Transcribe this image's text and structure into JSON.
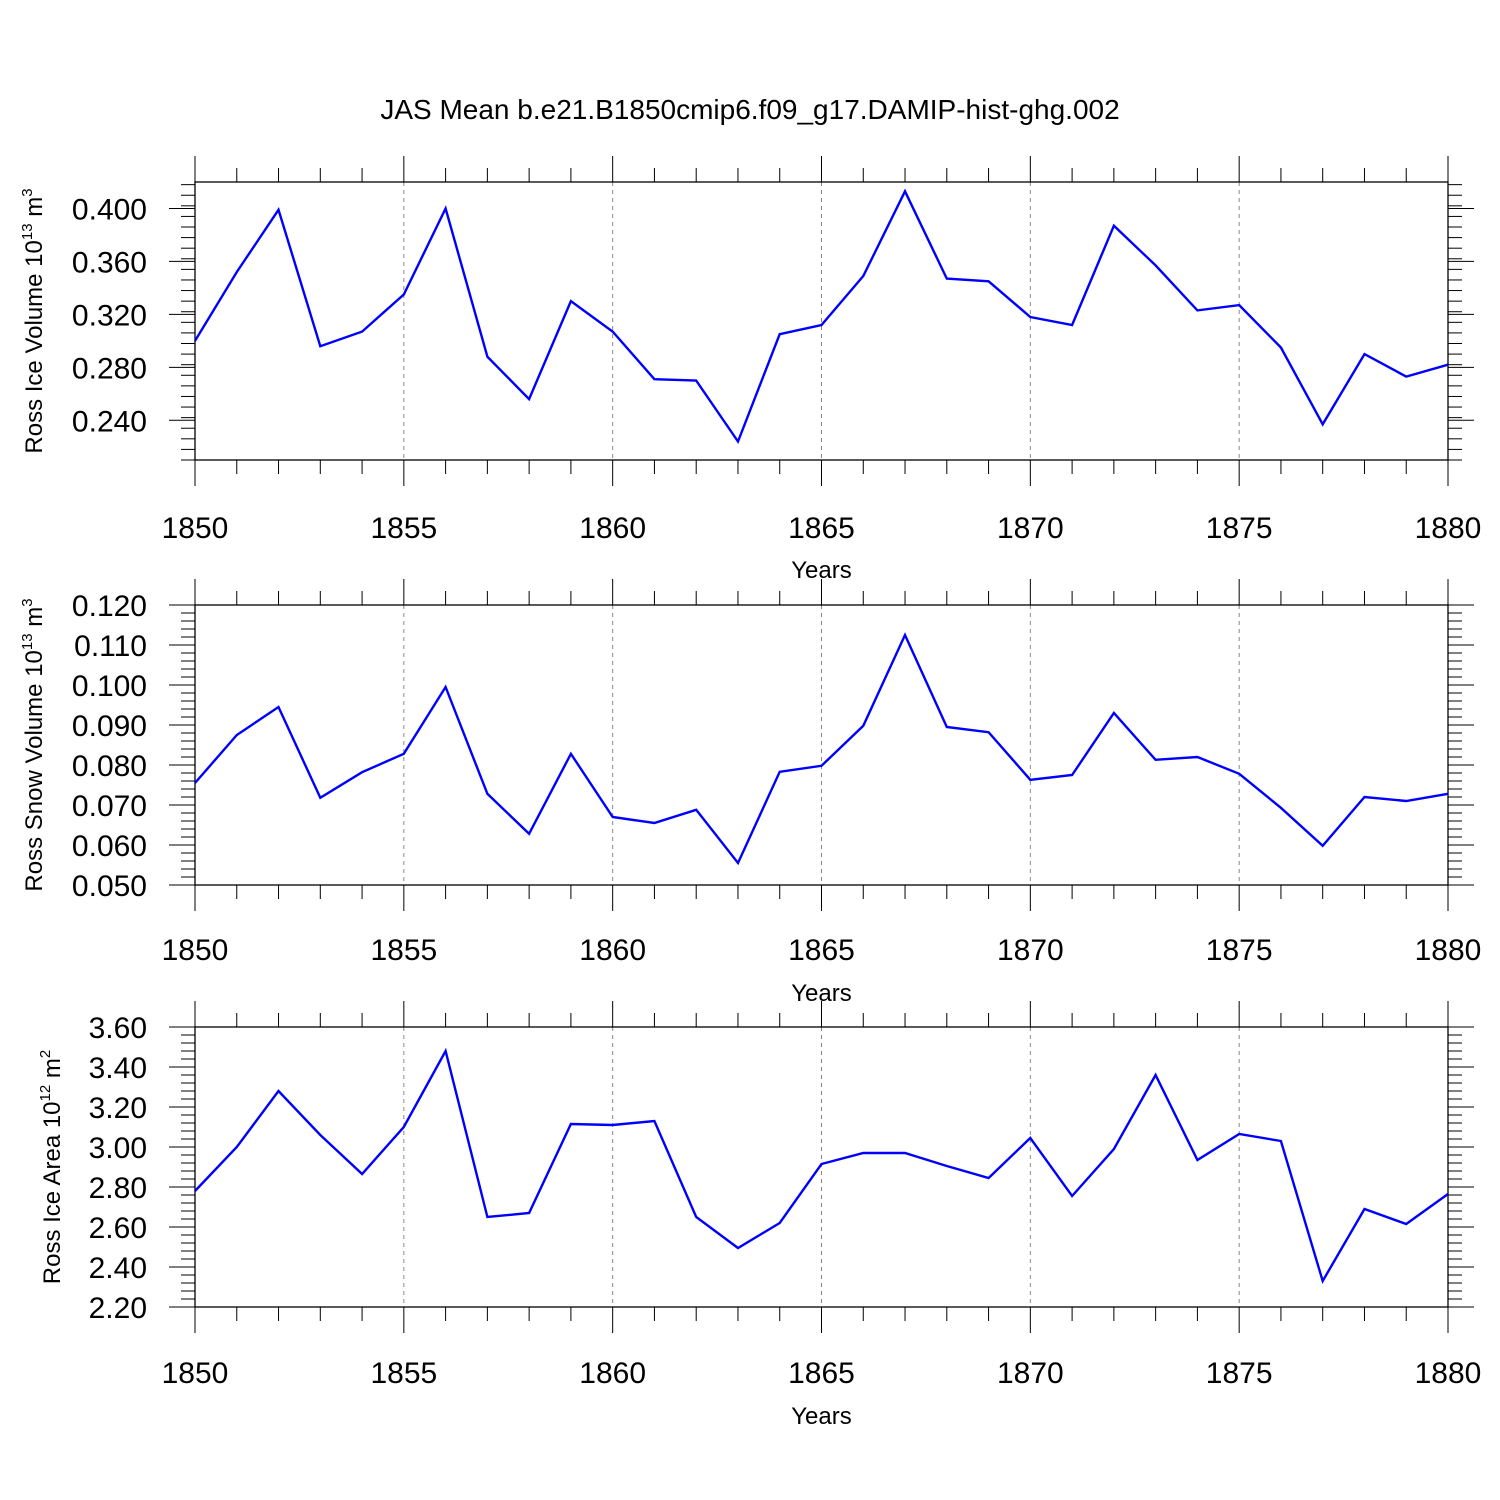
{
  "figure_title": "JAS Mean b.e21.B1850cmip6.f09_g17.DAMIP-hist-ghg.002",
  "chart_data": [
    {
      "type": "line",
      "title": "JAS Mean b.e21.B1850cmip6.f09_g17.DAMIP-hist-ghg.002",
      "xlabel": "Years",
      "ylabel": "Ross Ice Volume 10^13 m^3",
      "ylabel_parts": {
        "main": "Ross Ice Volume 10",
        "exp1": "13",
        "unit": " m",
        "exp2": "3"
      },
      "xlim": [
        1850,
        1880
      ],
      "ylim": [
        0.21,
        0.42
      ],
      "x_ticks": [
        "1850",
        "1855",
        "1860",
        "1865",
        "1870",
        "1875",
        "1880"
      ],
      "y_ticks": [
        "0.400",
        "0.360",
        "0.320",
        "0.280",
        "0.240"
      ],
      "grid": "vertical dashed at major x ticks",
      "line_color": "#0000ff",
      "x": [
        1850,
        1851,
        1852,
        1853,
        1854,
        1855,
        1856,
        1857,
        1858,
        1859,
        1860,
        1861,
        1862,
        1863,
        1864,
        1865,
        1866,
        1867,
        1868,
        1869,
        1870,
        1871,
        1872,
        1873,
        1874,
        1875,
        1876,
        1877,
        1878,
        1879,
        1880
      ],
      "values": [
        0.3,
        0.352,
        0.399,
        0.296,
        0.307,
        0.335,
        0.4,
        0.288,
        0.256,
        0.33,
        0.307,
        0.271,
        0.27,
        0.224,
        0.305,
        0.312,
        0.349,
        0.413,
        0.347,
        0.345,
        0.318,
        0.312,
        0.387,
        0.357,
        0.323,
        0.327,
        0.295,
        0.237,
        0.29,
        0.273,
        0.282
      ]
    },
    {
      "type": "line",
      "xlabel": "Years",
      "ylabel": "Ross Snow Volume 10^13 m^3",
      "ylabel_parts": {
        "main": "Ross Snow Volume 10",
        "exp1": "13",
        "unit": " m",
        "exp2": "3"
      },
      "xlim": [
        1850,
        1880
      ],
      "ylim": [
        0.05,
        0.12
      ],
      "x_ticks": [
        "1850",
        "1855",
        "1860",
        "1865",
        "1870",
        "1875",
        "1880"
      ],
      "y_ticks": [
        "0.120",
        "0.110",
        "0.100",
        "0.090",
        "0.080",
        "0.070",
        "0.060",
        "0.050"
      ],
      "grid": "vertical dashed at major x ticks",
      "line_color": "#0000ff",
      "x": [
        1850,
        1851,
        1852,
        1853,
        1854,
        1855,
        1856,
        1857,
        1858,
        1859,
        1860,
        1861,
        1862,
        1863,
        1864,
        1865,
        1866,
        1867,
        1868,
        1869,
        1870,
        1871,
        1872,
        1873,
        1874,
        1875,
        1876,
        1877,
        1878,
        1879,
        1880
      ],
      "values": [
        0.0755,
        0.0875,
        0.0945,
        0.0718,
        0.0782,
        0.0828,
        0.0995,
        0.0728,
        0.0628,
        0.0828,
        0.067,
        0.0655,
        0.0688,
        0.0555,
        0.0783,
        0.0798,
        0.0898,
        0.1125,
        0.0895,
        0.0882,
        0.0763,
        0.0775,
        0.093,
        0.0813,
        0.082,
        0.0778,
        0.0693,
        0.0598,
        0.072,
        0.071,
        0.0728
      ]
    },
    {
      "type": "line",
      "xlabel": "Years",
      "ylabel": "Ross Ice Area 10^12 m^2",
      "ylabel_parts": {
        "main": "Ross Ice Area 10",
        "exp1": "12",
        "unit": " m",
        "exp2": "2"
      },
      "xlim": [
        1850,
        1880
      ],
      "ylim": [
        2.2,
        3.6
      ],
      "x_ticks": [
        "1850",
        "1855",
        "1860",
        "1865",
        "1870",
        "1875",
        "1880"
      ],
      "y_ticks": [
        "3.60",
        "3.40",
        "3.20",
        "3.00",
        "2.80",
        "2.60",
        "2.40",
        "2.20"
      ],
      "grid": "vertical dashed at major x ticks",
      "line_color": "#0000ff",
      "x": [
        1850,
        1851,
        1852,
        1853,
        1854,
        1855,
        1856,
        1857,
        1858,
        1859,
        1860,
        1861,
        1862,
        1863,
        1864,
        1865,
        1866,
        1867,
        1868,
        1869,
        1870,
        1871,
        1872,
        1873,
        1874,
        1875,
        1876,
        1877,
        1878,
        1879,
        1880
      ],
      "values": [
        2.78,
        3.0,
        3.28,
        3.06,
        2.865,
        3.1,
        3.48,
        2.65,
        2.67,
        3.115,
        3.11,
        3.13,
        2.65,
        2.495,
        2.62,
        2.915,
        2.97,
        2.97,
        2.905,
        2.845,
        3.045,
        2.755,
        2.99,
        3.36,
        2.935,
        3.065,
        3.03,
        2.33,
        2.69,
        2.615,
        2.765
      ]
    }
  ]
}
